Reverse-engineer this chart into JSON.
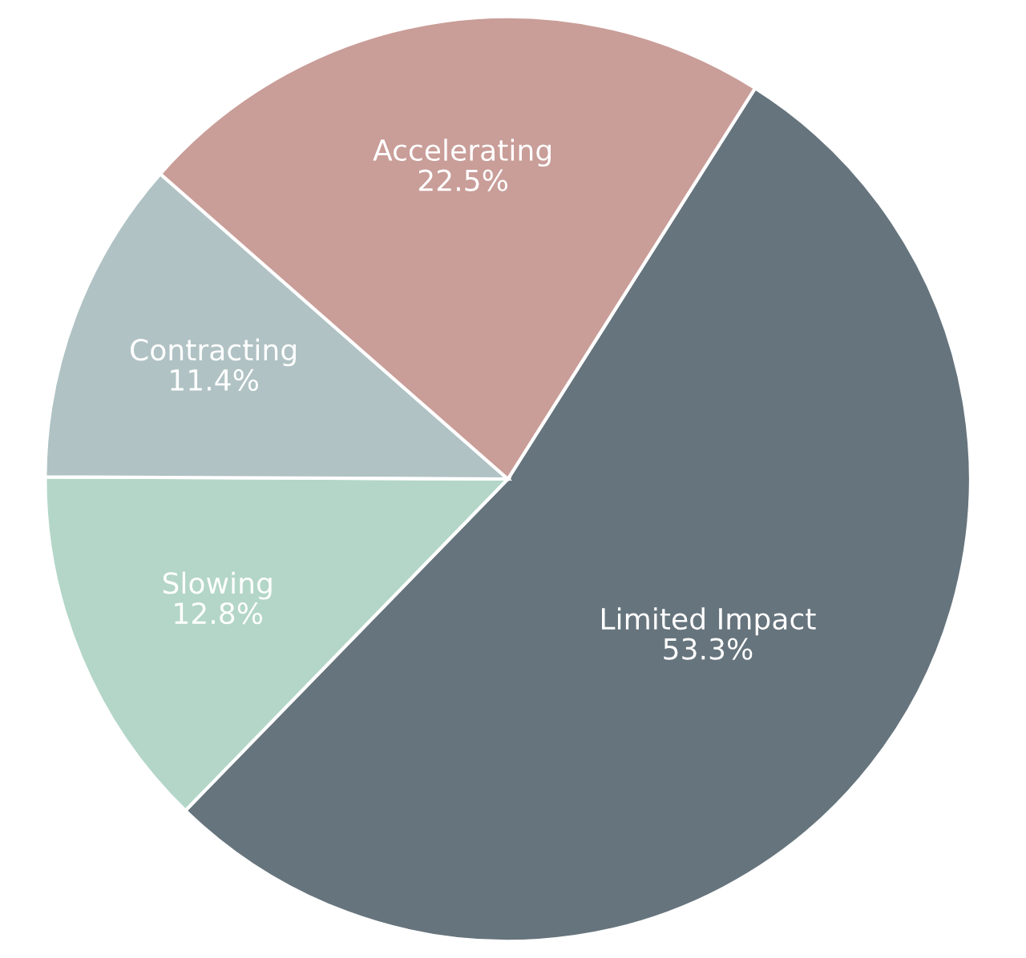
{
  "chart_data": {
    "type": "pie",
    "categories": [
      "Limited Impact",
      "Slowing",
      "Contracting",
      "Accelerating"
    ],
    "values": [
      53.3,
      12.8,
      11.4,
      22.5
    ],
    "colors": [
      "#66747d",
      "#b3d6c8",
      "#b0c2c4",
      "#c99d98"
    ],
    "value_labels": [
      "53.3%",
      "12.8%",
      "11.4%",
      "22.5%"
    ],
    "legend": false
  }
}
